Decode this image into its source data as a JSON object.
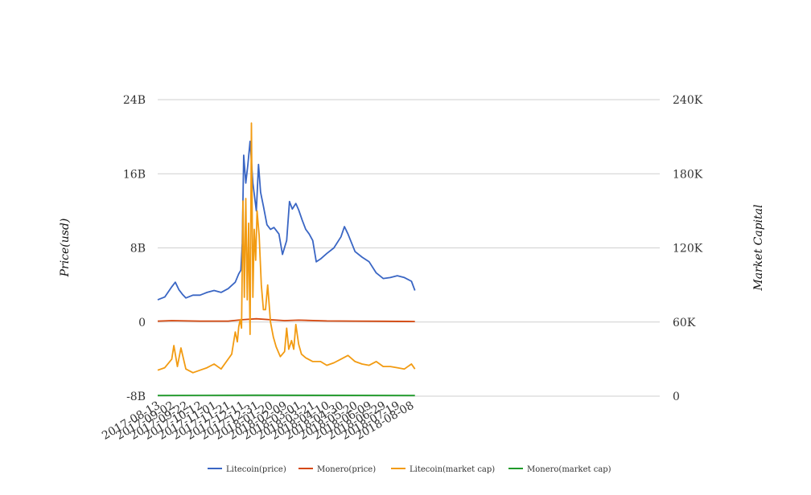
{
  "chart_data": {
    "type": "line",
    "title": "",
    "y_left": {
      "label": "Price(usd)",
      "ticks": [
        "-8B",
        "0",
        "8B",
        "16B",
        "24B"
      ],
      "range": [
        -8,
        24
      ],
      "unit": "B"
    },
    "y_right": {
      "label": "Market Capital",
      "ticks": [
        "0",
        "60K",
        "120K",
        "180K",
        "240K"
      ],
      "range": [
        0,
        240
      ],
      "unit": "K"
    },
    "x_ticks": [
      "2017-08-13",
      "2017-09-02",
      "2017-09-22",
      "2017-10-12",
      "2017-11-01",
      "2017-11-21",
      "2017-12-11",
      "2017-12-31",
      "2018-01-20",
      "2018-02-09",
      "2018-03-01",
      "2018-03-21",
      "2018-04-10",
      "2018-04-30",
      "2018-05-20",
      "2018-06-09",
      "2018-06-29",
      "2018-07-19",
      "2018-08-08"
    ],
    "legend_position": "bottom",
    "grid": true,
    "series": [
      {
        "name": "Litecoin(price)",
        "color": "#3a66c4",
        "axis": "left",
        "x": [
          "2017-08-13",
          "2017-08-23",
          "2017-09-02",
          "2017-09-07",
          "2017-09-12",
          "2017-09-17",
          "2017-09-22",
          "2017-10-02",
          "2017-10-12",
          "2017-10-22",
          "2017-11-01",
          "2017-11-11",
          "2017-11-21",
          "2017-12-01",
          "2017-12-06",
          "2017-12-09",
          "2017-12-11",
          "2017-12-13",
          "2017-12-16",
          "2017-12-19",
          "2017-12-22",
          "2017-12-26",
          "2017-12-31",
          "2018-01-03",
          "2018-01-06",
          "2018-01-10",
          "2018-01-15",
          "2018-01-20",
          "2018-01-25",
          "2018-02-01",
          "2018-02-06",
          "2018-02-12",
          "2018-02-16",
          "2018-02-20",
          "2018-02-25",
          "2018-03-01",
          "2018-03-06",
          "2018-03-11",
          "2018-03-16",
          "2018-03-21",
          "2018-03-26",
          "2018-04-01",
          "2018-04-10",
          "2018-04-20",
          "2018-04-30",
          "2018-05-05",
          "2018-05-10",
          "2018-05-20",
          "2018-05-30",
          "2018-06-09",
          "2018-06-19",
          "2018-06-29",
          "2018-07-09",
          "2018-07-19",
          "2018-07-29",
          "2018-08-08",
          "2018-08-13"
        ],
        "y": [
          2.4,
          2.7,
          3.8,
          4.3,
          3.5,
          3.0,
          2.6,
          2.9,
          2.9,
          3.2,
          3.4,
          3.2,
          3.6,
          4.3,
          5.2,
          5.6,
          8.5,
          18.0,
          15.0,
          17.0,
          19.5,
          15.0,
          12.0,
          17.0,
          14.0,
          12.5,
          10.5,
          10.0,
          10.2,
          9.5,
          7.3,
          8.8,
          13.0,
          12.2,
          12.8,
          12.1,
          11.0,
          10.0,
          9.5,
          8.8,
          6.5,
          6.8,
          7.4,
          8.0,
          9.2,
          10.3,
          9.5,
          7.6,
          7.0,
          6.5,
          5.3,
          4.7,
          4.8,
          5.0,
          4.8,
          4.4,
          3.4
        ]
      },
      {
        "name": "Monero(price)",
        "color": "#d4480f",
        "axis": "left",
        "x": [
          "2017-08-13",
          "2017-09-02",
          "2017-10-12",
          "2017-11-21",
          "2017-12-11",
          "2017-12-31",
          "2018-01-20",
          "2018-02-09",
          "2018-03-01",
          "2018-04-10",
          "2018-05-20",
          "2018-06-29",
          "2018-08-13"
        ],
        "y": [
          0.1,
          0.15,
          0.1,
          0.1,
          0.25,
          0.35,
          0.25,
          0.15,
          0.2,
          0.12,
          0.1,
          0.08,
          0.06
        ]
      },
      {
        "name": "Litecoin(market cap)",
        "color": "#f29b12",
        "axis": "right",
        "x": [
          "2017-08-13",
          "2017-08-23",
          "2017-09-02",
          "2017-09-05",
          "2017-09-10",
          "2017-09-15",
          "2017-09-22",
          "2017-10-02",
          "2017-10-12",
          "2017-10-22",
          "2017-11-01",
          "2017-11-11",
          "2017-11-21",
          "2017-11-26",
          "2017-12-01",
          "2017-12-04",
          "2017-12-06",
          "2017-12-08",
          "2017-12-10",
          "2017-12-12",
          "2017-12-14",
          "2017-12-16",
          "2017-12-18",
          "2017-12-20",
          "2017-12-22",
          "2017-12-24",
          "2017-12-26",
          "2017-12-28",
          "2017-12-30",
          "2018-01-01",
          "2018-01-04",
          "2018-01-07",
          "2018-01-10",
          "2018-01-13",
          "2018-01-16",
          "2018-01-20",
          "2018-01-24",
          "2018-01-28",
          "2018-02-03",
          "2018-02-09",
          "2018-02-12",
          "2018-02-15",
          "2018-02-19",
          "2018-02-22",
          "2018-02-25",
          "2018-03-01",
          "2018-03-05",
          "2018-03-11",
          "2018-03-21",
          "2018-04-01",
          "2018-04-10",
          "2018-04-20",
          "2018-04-30",
          "2018-05-10",
          "2018-05-20",
          "2018-05-30",
          "2018-06-09",
          "2018-06-19",
          "2018-06-29",
          "2018-07-09",
          "2018-07-19",
          "2018-07-29",
          "2018-08-08",
          "2018-08-13"
        ],
        "y": [
          21,
          23,
          30,
          41,
          24,
          39,
          22,
          19,
          21,
          23,
          26,
          22,
          30,
          34,
          52,
          44,
          56,
          62,
          55,
          158,
          80,
          160,
          78,
          140,
          50,
          221,
          80,
          135,
          110,
          150,
          130,
          90,
          70,
          70,
          90,
          60,
          48,
          40,
          32,
          36,
          55,
          38,
          45,
          38,
          58,
          42,
          34,
          31,
          28,
          28,
          25,
          27,
          30,
          33,
          28,
          26,
          25,
          28,
          24,
          24,
          23,
          22,
          26,
          22
        ]
      },
      {
        "name": "Monero(market cap)",
        "color": "#1f9a2a",
        "axis": "right",
        "x": [
          "2017-08-13",
          "2017-12-31",
          "2018-08-13"
        ],
        "y": [
          0.5,
          0.8,
          0.5
        ]
      }
    ]
  }
}
